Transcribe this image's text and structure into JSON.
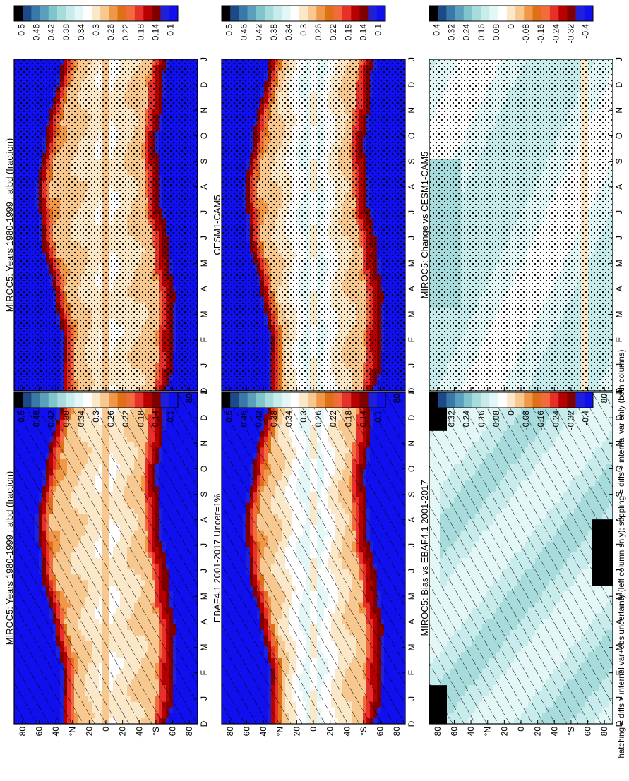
{
  "figure": {
    "caption": "hatching = diffs > internal var+obs uncertainty (left column only); stippling = diffs > internal var only (both columns)"
  },
  "chart_data": [
    {
      "type": "heatmap",
      "title": "MIROC5: Years 1980-1999 : albd (fraction)",
      "x_ticks": [
        "D",
        "J",
        "F",
        "M",
        "A",
        "M",
        "J",
        "J",
        "A",
        "S",
        "O",
        "N",
        "D",
        "J"
      ],
      "y_ticks": [
        "80",
        "60",
        "40",
        "°N",
        "20",
        "0",
        "20",
        "40",
        "°S",
        "60",
        "80"
      ],
      "colorbar": [
        "0.5",
        "0.46",
        "0.42",
        "0.38",
        "0.34",
        "0.3",
        "0.26",
        "0.22",
        "0.18",
        "0.14",
        "0.1"
      ],
      "palette": [
        "#1010ee",
        "#2020d8",
        "#7f0000",
        "#b80000",
        "#e8302a",
        "#f26b3c",
        "#e07018",
        "#f09848",
        "#f7c890",
        "#fbe8c8",
        "#ffffff",
        "#e4f7f7",
        "#c8ecec",
        "#a8dcdc",
        "#80c4cc",
        "#5aa0bc",
        "#3a78a8",
        "#1c4a88",
        "#000000"
      ],
      "overlay": "hatching",
      "pattern": "albedo",
      "colorbar_type": "abs"
    },
    {
      "type": "heatmap",
      "title": "MIROC5: Years 1980-1999 : albd (fraction)",
      "x_ticks": [
        "D",
        "J",
        "F",
        "M",
        "A",
        "M",
        "J",
        "J",
        "A",
        "S",
        "O",
        "N",
        "D",
        "J"
      ],
      "y_ticks": [
        "80",
        "60",
        "40",
        "°N",
        "20",
        "0",
        "20",
        "40",
        "°S",
        "60",
        "80"
      ],
      "colorbar": [
        "0.5",
        "0.46",
        "0.42",
        "0.38",
        "0.34",
        "0.3",
        "0.26",
        "0.22",
        "0.18",
        "0.14",
        "0.1"
      ],
      "overlay": "stippling",
      "pattern": "albedo",
      "colorbar_type": "abs"
    },
    {
      "type": "heatmap",
      "title": "EBAF4.1 2001-2017 Uncer=1%",
      "x_ticks": [
        "D",
        "J",
        "F",
        "M",
        "A",
        "M",
        "J",
        "J",
        "A",
        "S",
        "O",
        "N",
        "D",
        "J"
      ],
      "y_ticks": [
        "80",
        "60",
        "40",
        "°N",
        "20",
        "0",
        "20",
        "40",
        "°S",
        "60",
        "80"
      ],
      "colorbar": [
        "0.5",
        "0.46",
        "0.42",
        "0.38",
        "0.34",
        "0.3",
        "0.26",
        "0.22",
        "0.18",
        "0.14",
        "0.1"
      ],
      "overlay": "hatching",
      "pattern": "albedo_obs",
      "colorbar_type": "abs"
    },
    {
      "type": "heatmap",
      "title": "CESM1-CAM5",
      "x_ticks": [
        "D",
        "J",
        "F",
        "M",
        "A",
        "M",
        "J",
        "J",
        "A",
        "S",
        "O",
        "N",
        "D",
        "J"
      ],
      "y_ticks": [
        "80",
        "60",
        "40",
        "°N",
        "20",
        "0",
        "20",
        "40",
        "°S",
        "60",
        "80"
      ],
      "colorbar": [
        "0.5",
        "0.46",
        "0.42",
        "0.38",
        "0.34",
        "0.3",
        "0.26",
        "0.22",
        "0.18",
        "0.14",
        "0.1"
      ],
      "overlay": "stippling",
      "pattern": "albedo_obs",
      "colorbar_type": "abs"
    },
    {
      "type": "heatmap",
      "title": "MIROC5: Bias vs EBAF4.1 2001-2017",
      "x_ticks": [
        "D",
        "J",
        "F",
        "M",
        "A",
        "M",
        "J",
        "J",
        "A",
        "S",
        "O",
        "N",
        "D",
        "J"
      ],
      "y_ticks": [
        "80",
        "60",
        "40",
        "°N",
        "20",
        "0",
        "20",
        "40",
        "°S",
        "60",
        "80"
      ],
      "colorbar": [
        "0.4",
        "0.32",
        "0.24",
        "0.16",
        "0.08",
        "0",
        "-0.08",
        "-0.16",
        "-0.24",
        "-0.32",
        "-0.4"
      ],
      "overlay": "hatching",
      "pattern": "bias",
      "colorbar_type": "diff"
    },
    {
      "type": "heatmap",
      "title": "MIROC5: Change vs CESM1-CAM5",
      "x_ticks": [
        "D",
        "J",
        "F",
        "M",
        "A",
        "M",
        "J",
        "J",
        "A",
        "S",
        "O",
        "N",
        "D",
        "J"
      ],
      "y_ticks": [
        "80",
        "60",
        "40",
        "°N",
        "20",
        "0",
        "20",
        "40",
        "°S",
        "60",
        "80"
      ],
      "colorbar": [
        "0.4",
        "0.32",
        "0.24",
        "0.16",
        "0.08",
        "0",
        "-0.08",
        "-0.16",
        "-0.24",
        "-0.32",
        "-0.4"
      ],
      "overlay": "stippling",
      "pattern": "change",
      "colorbar_type": "diff"
    }
  ],
  "colors": {
    "abs": [
      "#1010ee",
      "#2020d8",
      "#7f0000",
      "#b80000",
      "#e8302a",
      "#f26b3c",
      "#e07018",
      "#f09848",
      "#f7c890",
      "#fbe8c8",
      "#ffffff",
      "#e4f7f7",
      "#c8ecec",
      "#a8dcdc",
      "#80c4cc",
      "#5aa0bc",
      "#3a78a8",
      "#1c4a88",
      "#000000"
    ],
    "diff": [
      "#1010ee",
      "#2020d8",
      "#7f0000",
      "#b80000",
      "#e8302a",
      "#f26b3c",
      "#e07018",
      "#f09848",
      "#f7c890",
      "#fbe8c8",
      "#ffffff",
      "#e4f7f7",
      "#c8ecec",
      "#a8dcdc",
      "#80c4cc",
      "#5aa0bc",
      "#3a78a8",
      "#1c4a88",
      "#000000"
    ]
  }
}
